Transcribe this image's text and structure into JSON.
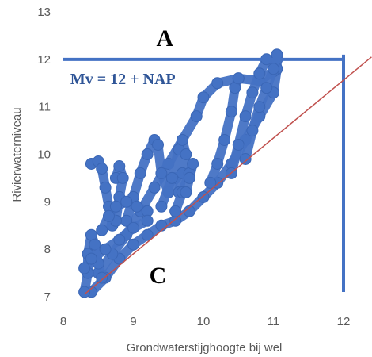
{
  "chart_data": {
    "type": "scatter",
    "xlabel": "Grondwaterstijghoogte bij wel",
    "ylabel": "Rivierwaterniveau",
    "xlim": [
      8,
      12
    ],
    "ylim": [
      7,
      13
    ],
    "x_ticks": [
      "8",
      "9",
      "10",
      "11",
      "12"
    ],
    "y_ticks": [
      "7",
      "8",
      "9",
      "10",
      "11",
      "12",
      "13"
    ],
    "grid": false,
    "legend": "none",
    "annotations": [
      {
        "text": "A",
        "x": 9.45,
        "y": 12.45
      },
      {
        "text": "Mv = 12 + NAP",
        "x": 8.1,
        "y": 11.6
      },
      {
        "text": "C",
        "x": 9.35,
        "y": 7.45
      }
    ],
    "reference_lines": [
      {
        "kind": "horizontal",
        "y": 12,
        "x_from": 8,
        "x_to": 12,
        "color": "#4472c4"
      },
      {
        "kind": "vertical",
        "x": 12,
        "y_from": 7.1,
        "y_to": 12.1,
        "color": "#4472c4"
      },
      {
        "kind": "diagonal",
        "points": [
          [
            8.3,
            7.05
          ],
          [
            12.4,
            12.05
          ]
        ],
        "color": "#c0504d"
      }
    ],
    "point_color": "#4472c4",
    "scatter_paths": [
      [
        [
          8.4,
          7.1
        ],
        [
          8.6,
          7.4
        ],
        [
          8.8,
          7.8
        ],
        [
          9.0,
          8.1
        ],
        [
          9.2,
          8.3
        ],
        [
          9.4,
          8.5
        ],
        [
          9.6,
          8.6
        ],
        [
          9.8,
          8.8
        ],
        [
          10.0,
          9.1
        ],
        [
          10.2,
          9.4
        ],
        [
          10.4,
          9.8
        ],
        [
          10.6,
          10.3
        ],
        [
          10.8,
          10.8
        ],
        [
          11.0,
          11.3
        ],
        [
          11.05,
          11.8
        ],
        [
          11.05,
          12.1
        ]
      ],
      [
        [
          8.5,
          7.5
        ],
        [
          8.7,
          7.9
        ],
        [
          8.9,
          8.3
        ],
        [
          9.1,
          8.8
        ],
        [
          9.3,
          9.3
        ],
        [
          9.5,
          9.8
        ],
        [
          9.7,
          10.3
        ],
        [
          9.9,
          10.8
        ],
        [
          10.0,
          11.2
        ],
        [
          10.2,
          11.5
        ],
        [
          10.5,
          11.6
        ],
        [
          10.8,
          11.55
        ],
        [
          11.0,
          11.75
        ],
        [
          11.05,
          12.0
        ]
      ],
      [
        [
          8.9,
          8.6
        ],
        [
          9.0,
          9.1
        ],
        [
          9.1,
          9.6
        ],
        [
          9.2,
          10.0
        ],
        [
          9.3,
          10.3
        ],
        [
          9.35,
          10.2
        ],
        [
          9.4,
          9.6
        ],
        [
          9.5,
          9.2
        ],
        [
          9.6,
          9.5
        ]
      ],
      [
        [
          9.4,
          8.9
        ],
        [
          9.55,
          9.5
        ],
        [
          9.65,
          10.1
        ],
        [
          9.7,
          10.3
        ],
        [
          9.75,
          10.0
        ],
        [
          9.7,
          9.6
        ],
        [
          9.65,
          9.2
        ]
      ],
      [
        [
          9.6,
          8.8
        ],
        [
          9.7,
          9.2
        ],
        [
          9.8,
          9.6
        ],
        [
          9.85,
          9.8
        ],
        [
          9.8,
          9.5
        ],
        [
          9.75,
          9.2
        ]
      ],
      [
        [
          10.1,
          9.4
        ],
        [
          10.2,
          9.8
        ],
        [
          10.3,
          10.3
        ],
        [
          10.4,
          10.9
        ],
        [
          10.45,
          11.4
        ],
        [
          10.5,
          11.6
        ]
      ],
      [
        [
          10.4,
          9.6
        ],
        [
          10.5,
          10.2
        ],
        [
          10.6,
          10.8
        ],
        [
          10.7,
          11.3
        ],
        [
          10.8,
          11.7
        ],
        [
          10.9,
          12.0
        ]
      ],
      [
        [
          10.6,
          9.9
        ],
        [
          10.7,
          10.5
        ],
        [
          10.8,
          11.0
        ],
        [
          10.9,
          11.4
        ],
        [
          11.0,
          11.8
        ],
        [
          11.05,
          12.1
        ]
      ],
      [
        [
          8.4,
          9.8
        ],
        [
          8.5,
          9.85
        ],
        [
          8.55,
          9.7
        ],
        [
          8.6,
          9.3
        ],
        [
          8.65,
          8.9
        ],
        [
          8.7,
          8.5
        ]
      ],
      [
        [
          8.75,
          9.5
        ],
        [
          8.8,
          9.75
        ],
        [
          8.85,
          9.5
        ],
        [
          8.8,
          9.1
        ],
        [
          8.75,
          8.6
        ]
      ],
      [
        [
          8.3,
          7.1
        ],
        [
          8.35,
          7.5
        ],
        [
          8.35,
          7.9
        ],
        [
          8.4,
          8.3
        ],
        [
          8.45,
          8.1
        ],
        [
          8.5,
          7.7
        ],
        [
          8.55,
          7.4
        ]
      ],
      [
        [
          8.55,
          8.4
        ],
        [
          8.65,
          8.7
        ],
        [
          8.75,
          8.9
        ],
        [
          8.9,
          9.0
        ],
        [
          9.05,
          8.9
        ],
        [
          9.2,
          8.8
        ]
      ],
      [
        [
          8.3,
          7.6
        ],
        [
          8.4,
          7.8
        ],
        [
          8.6,
          8.0
        ],
        [
          8.8,
          8.2
        ],
        [
          9.0,
          8.45
        ],
        [
          9.2,
          8.6
        ]
      ]
    ]
  }
}
